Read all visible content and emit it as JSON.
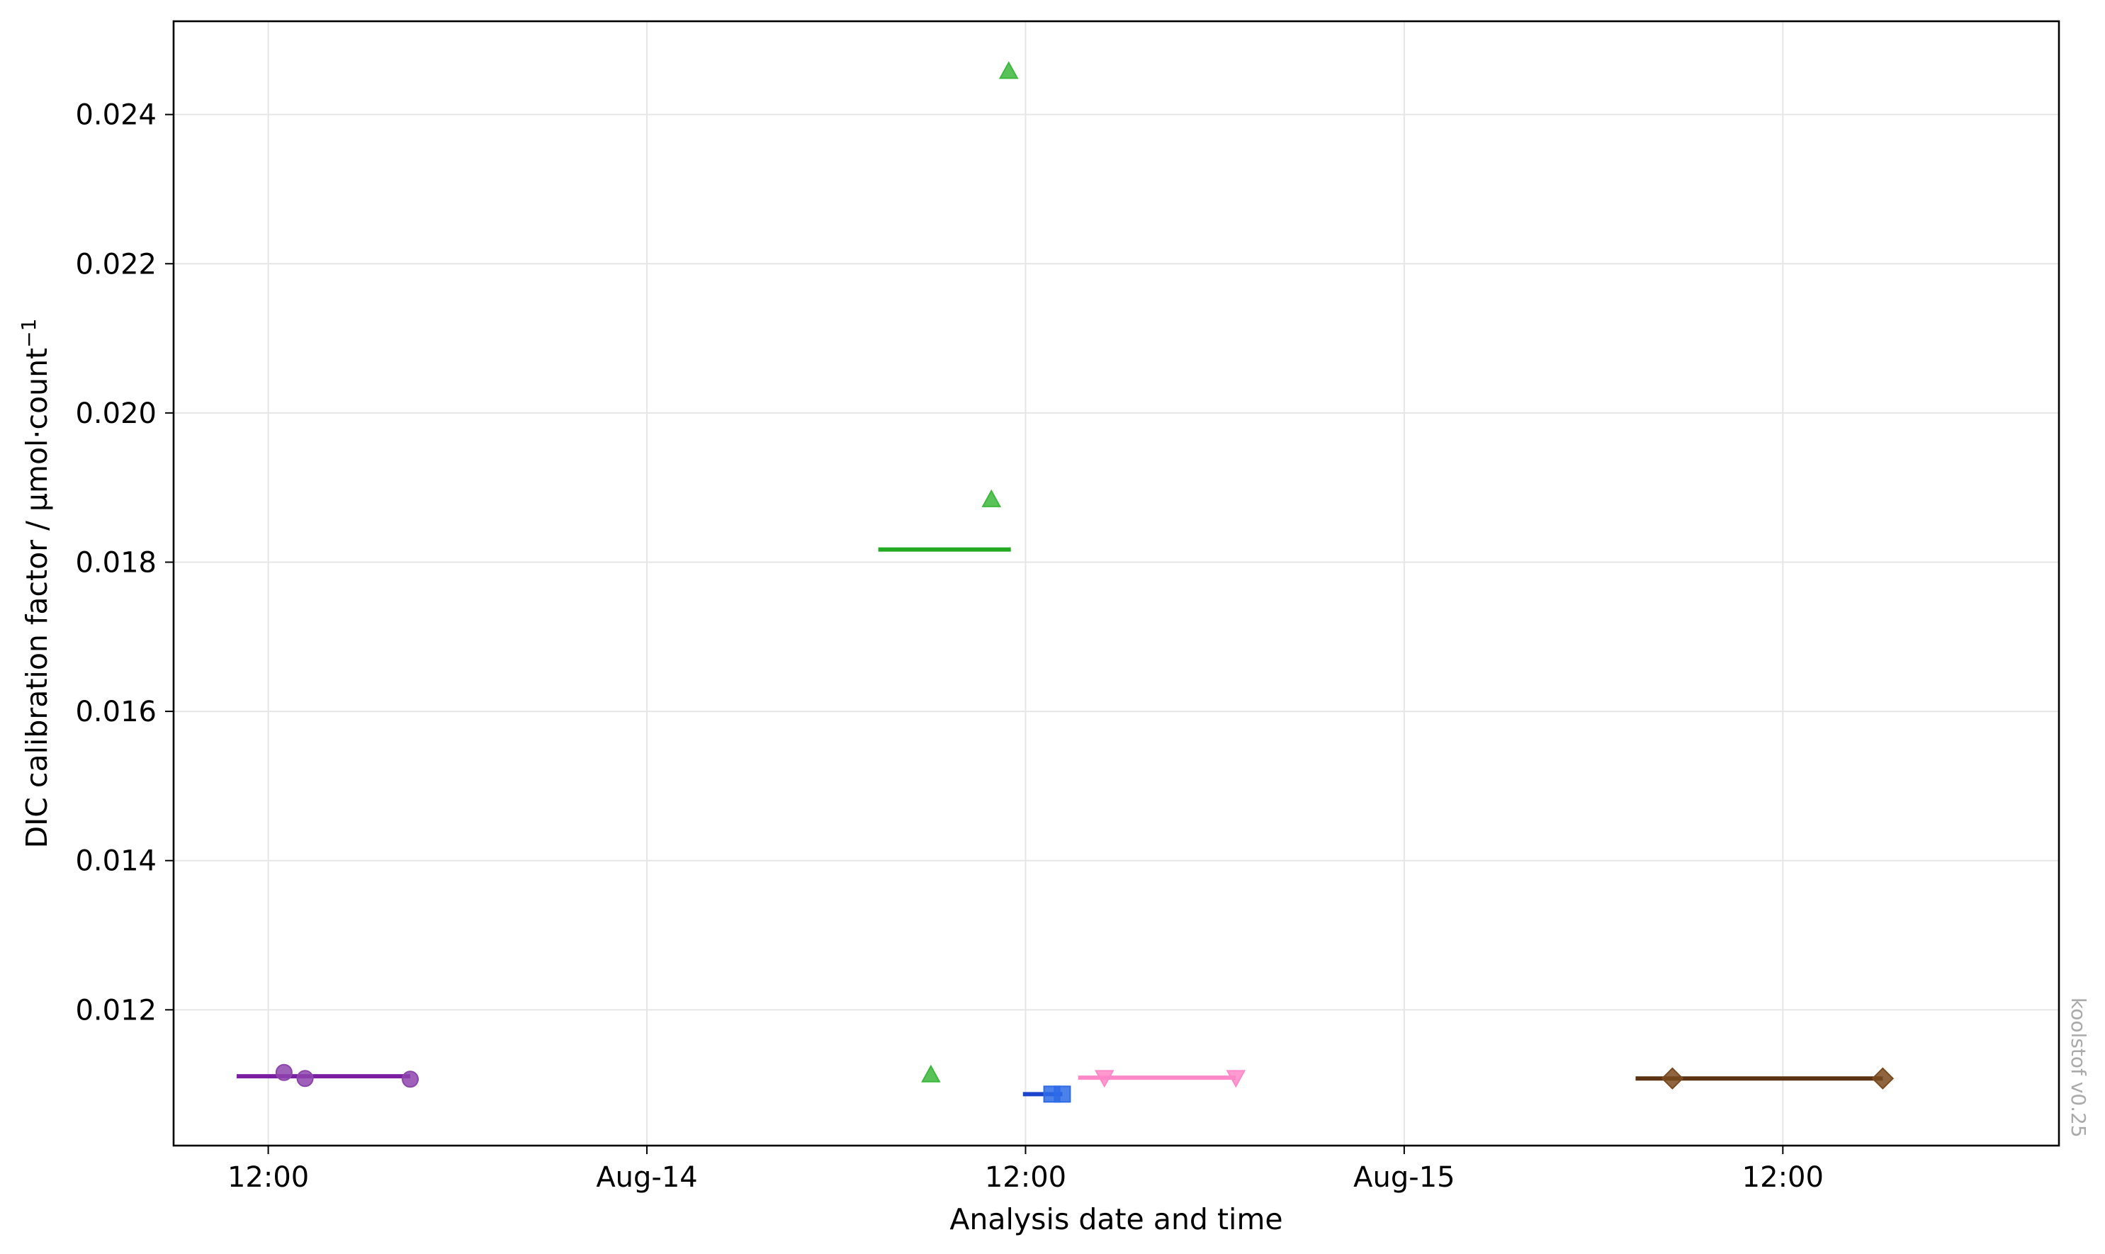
{
  "chart_data": {
    "type": "scatter",
    "title": "",
    "xlabel": "Analysis date and time",
    "ylabel_main": "DIC calibration factor / μmol·count",
    "ylabel_sup": "−1",
    "x_axis": "datetime",
    "xlim": [
      "2023-08-13T09:00",
      "2023-08-15T20:45"
    ],
    "ylim": [
      0.01018,
      0.02525
    ],
    "x_ticks": [
      {
        "t": "2023-08-13T12:00",
        "label": "12:00"
      },
      {
        "t": "2023-08-14T00:00",
        "label": "Aug-14"
      },
      {
        "t": "2023-08-14T12:00",
        "label": "12:00"
      },
      {
        "t": "2023-08-15T00:00",
        "label": "Aug-15"
      },
      {
        "t": "2023-08-15T12:00",
        "label": "12:00"
      }
    ],
    "y_ticks": [
      {
        "v": 0.012,
        "label": "0.012"
      },
      {
        "v": 0.014,
        "label": "0.014"
      },
      {
        "v": 0.016,
        "label": "0.016"
      },
      {
        "v": 0.018,
        "label": "0.018"
      },
      {
        "v": 0.02,
        "label": "0.020"
      },
      {
        "v": 0.022,
        "label": "0.022"
      },
      {
        "v": 0.024,
        "label": "0.024"
      }
    ],
    "grid": true,
    "legend": "none",
    "series": [
      {
        "marker": "circle",
        "color": "#8e44ad",
        "line_color": "#7b1fa2",
        "points": [
          {
            "x": "2023-08-13T12:30",
            "y": 0.01116
          },
          {
            "x": "2023-08-13T13:10",
            "y": 0.01108
          },
          {
            "x": "2023-08-13T16:30",
            "y": 0.01107
          }
        ],
        "mean_line": {
          "x0": "2023-08-13T11:00",
          "x1": "2023-08-13T16:30",
          "y": 0.01111
        }
      },
      {
        "marker": "triangle-up",
        "color": "#3cb83c",
        "line_color": "#22aa22",
        "points": [
          {
            "x": "2023-08-14T09:00",
            "y": 0.01112
          },
          {
            "x": "2023-08-14T10:55",
            "y": 0.01883
          },
          {
            "x": "2023-08-14T11:28",
            "y": 0.02457
          }
        ],
        "mean_line": {
          "x0": "2023-08-14T07:20",
          "x1": "2023-08-14T11:32",
          "y": 0.01817
        }
      },
      {
        "marker": "square",
        "color": "#2e6be6",
        "line_color": "#1a44cc",
        "points": [
          {
            "x": "2023-08-14T12:50",
            "y": 0.01087
          },
          {
            "x": "2023-08-14T13:10",
            "y": 0.01087
          }
        ],
        "mean_line": {
          "x0": "2023-08-14T11:55",
          "x1": "2023-08-14T13:10",
          "y": 0.01087
        }
      },
      {
        "marker": "triangle-down",
        "color": "#ff88c8",
        "line_color": "#ff88c8",
        "points": [
          {
            "x": "2023-08-14T14:30",
            "y": 0.0111
          },
          {
            "x": "2023-08-14T18:40",
            "y": 0.0111
          }
        ],
        "mean_line": {
          "x0": "2023-08-14T13:40",
          "x1": "2023-08-14T18:40",
          "y": 0.01109
        }
      },
      {
        "marker": "diamond",
        "color": "#7a4a1e",
        "line_color": "#5a3210",
        "points": [
          {
            "x": "2023-08-15T08:30",
            "y": 0.01108
          },
          {
            "x": "2023-08-15T15:10",
            "y": 0.01108
          }
        ],
        "mean_line": {
          "x0": "2023-08-15T07:20",
          "x1": "2023-08-15T15:10",
          "y": 0.01108
        }
      }
    ]
  },
  "watermark": "koolstof v0.25"
}
